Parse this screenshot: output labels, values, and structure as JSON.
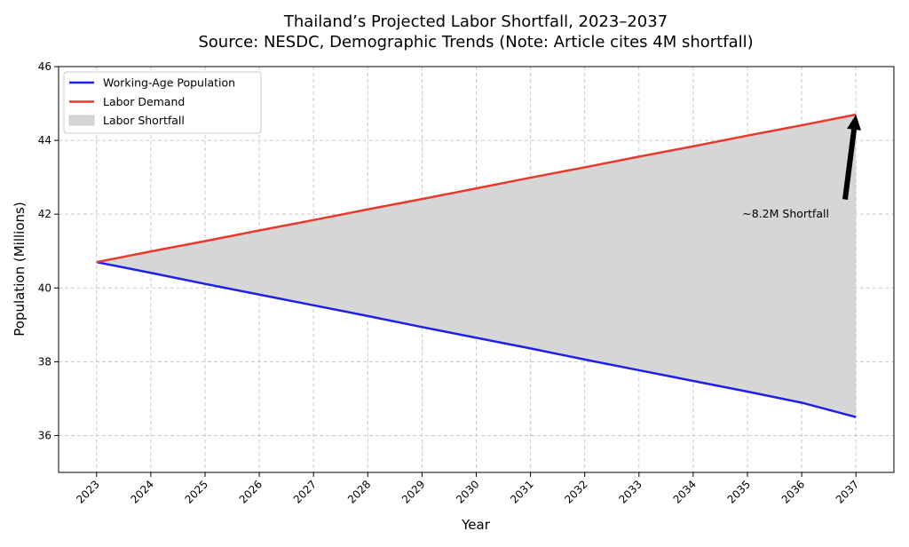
{
  "chart_data": {
    "type": "line",
    "title": "Thailand’s Projected Labor Shortfall, 2023–2037",
    "subtitle": "Source: NESDC, Demographic Trends (Note: Article cites 4M shortfall)",
    "xlabel": "Year",
    "ylabel": "Population (Millions)",
    "x": [
      2023,
      2024,
      2025,
      2026,
      2027,
      2028,
      2029,
      2030,
      2031,
      2032,
      2033,
      2034,
      2035,
      2036,
      2037
    ],
    "xlim": [
      2022.3,
      2037.7
    ],
    "ylim": [
      35,
      46
    ],
    "yticks": [
      36,
      38,
      40,
      42,
      44,
      46
    ],
    "grid": true,
    "legend_position": "top-left",
    "series": [
      {
        "name": "Working-Age Population",
        "color": "#1f1fe6",
        "values": [
          40.7,
          40.41,
          40.11,
          39.82,
          39.53,
          39.24,
          38.94,
          38.65,
          38.36,
          38.06,
          37.77,
          37.48,
          37.19,
          36.89,
          36.5
        ]
      },
      {
        "name": "Labor Demand",
        "color": "#e8392c",
        "values": [
          40.7,
          40.99,
          41.27,
          41.56,
          41.84,
          42.13,
          42.41,
          42.7,
          42.99,
          43.27,
          43.56,
          43.84,
          44.13,
          44.41,
          44.7
        ]
      }
    ],
    "fill": {
      "name": "Labor Shortfall",
      "between": [
        "Working-Age Population",
        "Labor Demand"
      ],
      "color": "#d6d6d6"
    },
    "annotation": {
      "text": "~8.2M Shortfall",
      "arrow_from": [
        2036.8,
        42.4
      ],
      "arrow_to": [
        2037,
        44.7
      ],
      "text_position": [
        2036,
        42.0
      ]
    }
  }
}
